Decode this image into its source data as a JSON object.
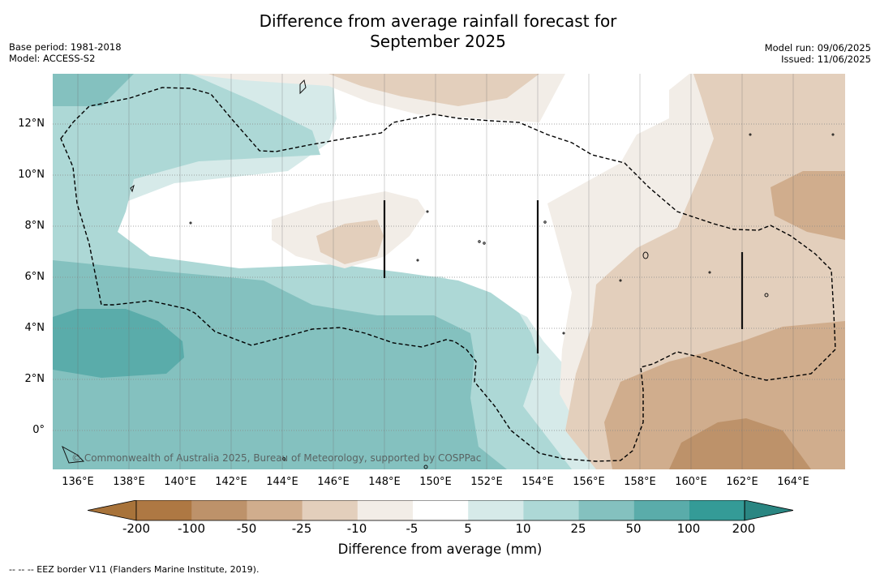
{
  "title": [
    "Difference from average rainfall forecast for",
    "September 2025"
  ],
  "meta_left": [
    "Base period: 1981-2018",
    "Model: ACCESS-S2"
  ],
  "meta_right": [
    "Model run: 09/06/2025",
    "Issued: 11/06/2025"
  ],
  "map": {
    "y_ticks": [
      "12°N",
      "10°N",
      "8°N",
      "6°N",
      "4°N",
      "2°N",
      "0°"
    ],
    "x_ticks": [
      "136°E",
      "138°E",
      "140°E",
      "142°E",
      "144°E",
      "146°E",
      "148°E",
      "150°E",
      "152°E",
      "154°E",
      "156°E",
      "158°E",
      "160°E",
      "162°E",
      "164°E"
    ],
    "lon_range": [
      135,
      166
    ],
    "lat_range": [
      -1.5,
      14
    ],
    "copyright": "© Commonwealth of Australia 2025, Bureau of Meteorology, supported by COSPPac"
  },
  "colorbar": {
    "labels": [
      "-200",
      "-100",
      "-50",
      "-25",
      "-10",
      "-5",
      "5",
      "10",
      "25",
      "50",
      "100",
      "200"
    ],
    "colors": [
      "#a8733a",
      "#ae7843",
      "#bd926a",
      "#d0ad8d",
      "#e3cfbc",
      "#f2ede7",
      "#ffffff",
      "#d6eae9",
      "#add8d6",
      "#84c1bf",
      "#5aacaa",
      "#349b97",
      "#2a8682"
    ],
    "title": "Difference from average (mm)"
  },
  "footnote": "--  --  -- EEZ border V11 (Flanders Marine Institute, 2019)."
}
